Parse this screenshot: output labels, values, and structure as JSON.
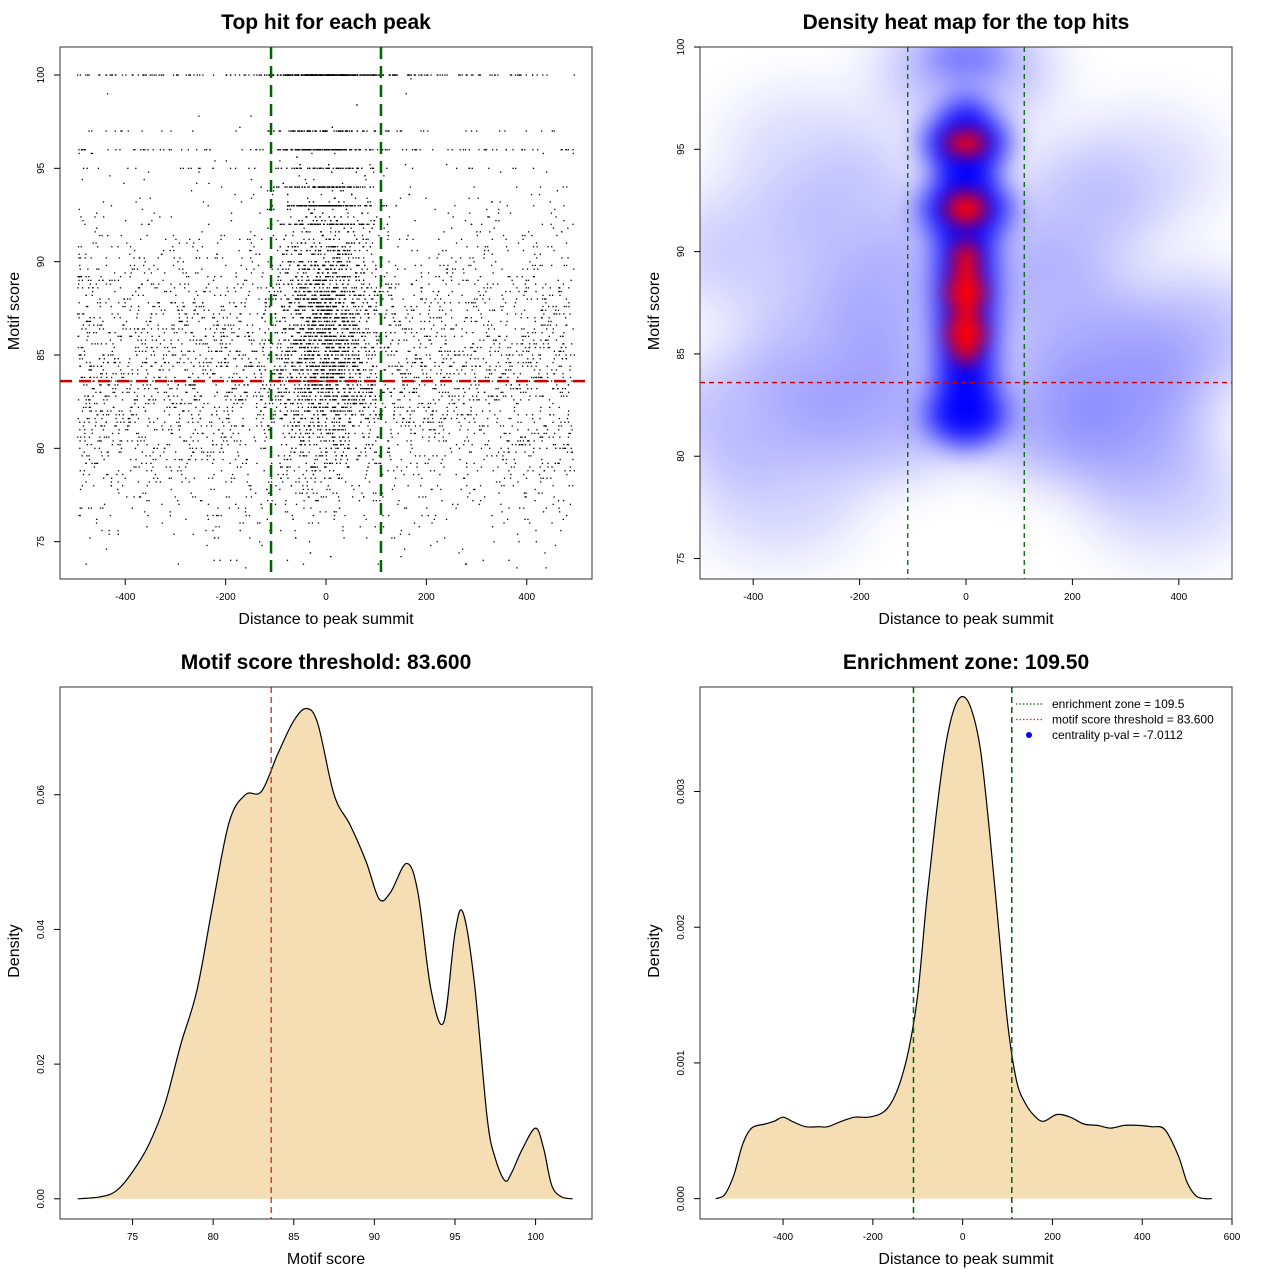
{
  "chart_data": [
    {
      "type": "scatter",
      "title": "Top hit for each peak",
      "xlabel": "Distance to peak summit",
      "ylabel": "Motif score",
      "xlim": [
        -530,
        530
      ],
      "ylim": [
        73,
        101.5
      ],
      "xticks": [
        -400,
        -200,
        0,
        200,
        400
      ],
      "yticks": [
        75,
        80,
        85,
        90,
        95,
        100
      ],
      "threshold_score": 83.6,
      "enrichment_zone": 109.5,
      "note_points": "dense cloud of top-hit points, concentrated between the enrichment-zone lines",
      "colors": {
        "points": "#000000",
        "threshold": "#cc0000",
        "zone": "#006400"
      }
    },
    {
      "type": "heatmap",
      "title": "Density heat map for the top hits",
      "xlabel": "Distance to peak summit",
      "ylabel": "Motif score",
      "xlim": [
        -500,
        500
      ],
      "ylim": [
        74,
        100
      ],
      "xticks": [
        -400,
        -200,
        0,
        200,
        400
      ],
      "yticks": [
        75,
        80,
        85,
        90,
        95,
        100
      ],
      "threshold_score": 83.6,
      "enrichment_zone": 109.5,
      "hotspots": [
        {
          "x": 0,
          "y": 95.3,
          "intensity": "high"
        },
        {
          "x": 0,
          "y": 92.1,
          "intensity": "high"
        },
        {
          "x": 0,
          "y": 88.0,
          "intensity": "high"
        },
        {
          "x": 0,
          "y": 86.0,
          "intensity": "high"
        }
      ],
      "colors": {
        "low": "#ffffff",
        "mid": "#0000ff",
        "high": "#ff0000",
        "threshold": "#cc0000",
        "zone": "#006400"
      }
    },
    {
      "type": "area",
      "title": "Motif score threshold: 83.600",
      "xlabel": "Motif score",
      "ylabel": "Density",
      "xlim": [
        70.5,
        103.5
      ],
      "ylim": [
        -0.003,
        0.076
      ],
      "xticks": [
        75,
        80,
        85,
        90,
        95,
        100
      ],
      "yticks": [
        0.0,
        0.02,
        0.04,
        0.06
      ],
      "ytick_labels": [
        "0.00",
        "0.02",
        "0.04",
        "0.06"
      ],
      "x": [
        71.6,
        73,
        74,
        75,
        76,
        77,
        78,
        79,
        80,
        81,
        82,
        83,
        84,
        85,
        85.8,
        86.5,
        87.5,
        88.5,
        89.5,
        90.3,
        91,
        92,
        92.7,
        93.5,
        94.3,
        95,
        95.5,
        96.2,
        97,
        97.5,
        98.1,
        98.5,
        99.2,
        100,
        100.5,
        101,
        101.6,
        102.3
      ],
      "y": [
        0.0,
        0.0003,
        0.0012,
        0.004,
        0.008,
        0.014,
        0.023,
        0.031,
        0.044,
        0.056,
        0.06,
        0.0605,
        0.066,
        0.071,
        0.0728,
        0.0705,
        0.06,
        0.0555,
        0.05,
        0.0445,
        0.0455,
        0.0498,
        0.0455,
        0.0312,
        0.0262,
        0.0395,
        0.0425,
        0.0322,
        0.012,
        0.006,
        0.0027,
        0.0038,
        0.0075,
        0.0105,
        0.0075,
        0.002,
        0.0003,
        0.0
      ],
      "threshold": 83.6,
      "colors": {
        "fill": "#f5deb3",
        "line": "#000000",
        "threshold": "#dd2222"
      }
    },
    {
      "type": "area",
      "title": "Enrichment zone: 109.50",
      "xlabel": "Distance to peak summit",
      "ylabel": "Density",
      "xlim": [
        -585,
        600
      ],
      "ylim": [
        -0.00015,
        0.00377
      ],
      "xticks": [
        -400,
        -200,
        0,
        200,
        400,
        600
      ],
      "yticks": [
        0.0,
        0.001,
        0.002,
        0.003
      ],
      "ytick_labels": [
        "0.000",
        "0.001",
        "0.002",
        "0.003"
      ],
      "x": [
        -550,
        -530,
        -510,
        -490,
        -470,
        -440,
        -420,
        -400,
        -380,
        -350,
        -320,
        -300,
        -270,
        -240,
        -210,
        -180,
        -160,
        -140,
        -120,
        -100,
        -80,
        -60,
        -40,
        -20,
        0,
        20,
        40,
        60,
        80,
        100,
        120,
        140,
        160,
        180,
        210,
        240,
        270,
        300,
        330,
        360,
        390,
        420,
        450,
        480,
        500,
        520,
        540,
        555
      ],
      "y": [
        0.0,
        3e-05,
        0.00017,
        0.0004,
        0.00052,
        0.00055,
        0.00057,
        0.0006,
        0.00057,
        0.00053,
        0.00053,
        0.00053,
        0.00057,
        0.0006,
        0.0006,
        0.00063,
        0.0007,
        0.00085,
        0.0011,
        0.0015,
        0.0022,
        0.0028,
        0.0033,
        0.0036,
        0.0037,
        0.0036,
        0.0033,
        0.0027,
        0.002,
        0.0013,
        0.00087,
        0.0007,
        0.00061,
        0.00057,
        0.00062,
        0.0006,
        0.00055,
        0.00054,
        0.00052,
        0.00054,
        0.00054,
        0.00053,
        0.00051,
        0.00032,
        0.00012,
        2e-05,
        0.0,
        0.0
      ],
      "zone": 109.5,
      "legend": {
        "position": "top-right",
        "entries": [
          {
            "label": "enrichment zone = 109.5",
            "style": "dotted-line",
            "color": "#006400"
          },
          {
            "label": "motif score threshold = 83.600",
            "style": "dotted-line",
            "color": "#dd2222"
          },
          {
            "label": "centrality p-val = -7.0112",
            "style": "point",
            "color": "#0000ff"
          }
        ]
      },
      "colors": {
        "fill": "#f5deb3",
        "line": "#000000",
        "zone": "#006400"
      }
    }
  ]
}
